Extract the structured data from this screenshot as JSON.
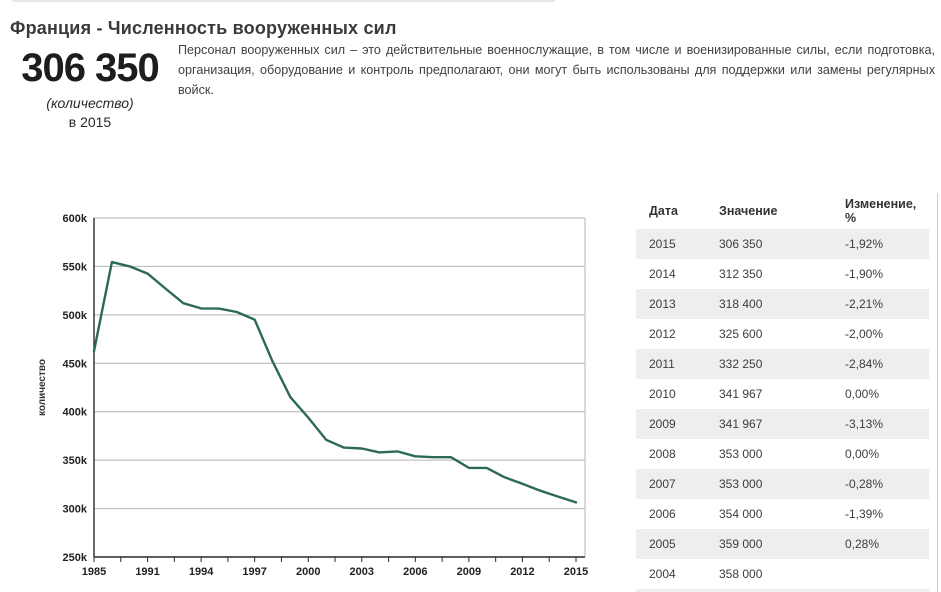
{
  "page": {
    "title": "Франция - Численность вооруженных сил"
  },
  "stat": {
    "value": "306 350",
    "unit_label": "(количество)",
    "year_label": "в 2015"
  },
  "description": "Персонал вооруженных сил – это действительные военнослужащие, в том числе и военизированные силы, если подготовка, организация, оборудование и контроль предполагают, они могут быть использованы для поддержки или замены регулярных войск.",
  "chart_data": {
    "type": "line",
    "title": "",
    "xlabel": "",
    "ylabel": "количество",
    "ylim": [
      250000,
      600000
    ],
    "ytick_step": 50000,
    "grid": true,
    "legend": "none",
    "line_color": "#2d6a55",
    "x": [
      1985,
      1989,
      1990,
      1991,
      1992,
      1993,
      1994,
      1995,
      1996,
      1997,
      1998,
      1999,
      2000,
      2001,
      2002,
      2003,
      2004,
      2005,
      2006,
      2007,
      2008,
      2009,
      2010,
      2011,
      2012,
      2013,
      2014,
      2015
    ],
    "x_tick_labels": [
      "1985",
      "1991",
      "1994",
      "1997",
      "2000",
      "2003",
      "2006",
      "2009",
      "2012",
      "2015"
    ],
    "series": [
      {
        "name": "Численность вооруженных сил",
        "values": [
          462550,
          554450,
          550000,
          542600,
          527250,
          512000,
          506650,
          506500,
          503000,
          495000,
          452000,
          415000,
          394000,
          371000,
          363000,
          362000,
          358000,
          359000,
          354000,
          353000,
          353000,
          341967,
          341967,
          332250,
          325600,
          318400,
          312350,
          306350
        ]
      }
    ]
  },
  "table": {
    "headers": [
      "Дата",
      "Значение",
      "Изменение, %"
    ],
    "rows": [
      {
        "date": "2015",
        "value": "306 350",
        "change": "-1,92%"
      },
      {
        "date": "2014",
        "value": "312 350",
        "change": "-1,90%"
      },
      {
        "date": "2013",
        "value": "318 400",
        "change": "-2,21%"
      },
      {
        "date": "2012",
        "value": "325 600",
        "change": "-2,00%"
      },
      {
        "date": "2011",
        "value": "332 250",
        "change": "-2,84%"
      },
      {
        "date": "2010",
        "value": "341 967",
        "change": "0,00%"
      },
      {
        "date": "2009",
        "value": "341 967",
        "change": "-3,13%"
      },
      {
        "date": "2008",
        "value": "353 000",
        "change": "0,00%"
      },
      {
        "date": "2007",
        "value": "353 000",
        "change": "-0,28%"
      },
      {
        "date": "2006",
        "value": "354 000",
        "change": "-1,39%"
      },
      {
        "date": "2005",
        "value": "359 000",
        "change": "0,28%"
      },
      {
        "date": "2004",
        "value": "358 000",
        "change": ""
      }
    ]
  }
}
